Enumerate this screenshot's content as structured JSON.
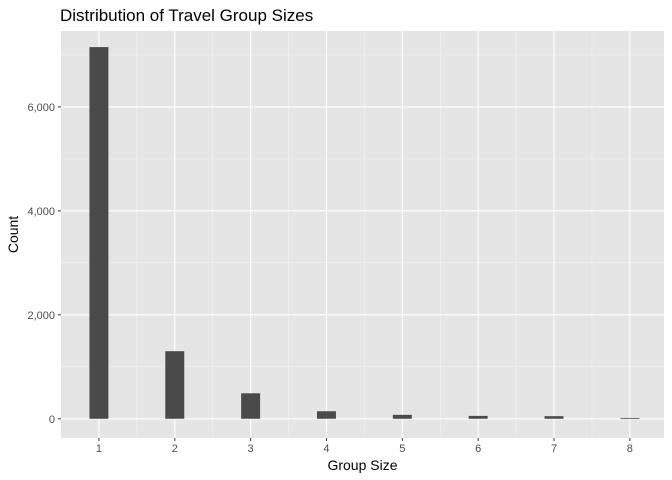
{
  "chart_data": {
    "type": "bar",
    "title": "Distribution of Travel Group Sizes",
    "xlabel": "Group Size",
    "ylabel": "Count",
    "categories": [
      1,
      2,
      3,
      4,
      5,
      6,
      7,
      8
    ],
    "category_labels": [
      "1",
      "2",
      "3",
      "4",
      "5",
      "6",
      "7",
      "8"
    ],
    "values": [
      7150,
      1300,
      490,
      145,
      75,
      55,
      50,
      15
    ],
    "xlim": [
      0.5,
      8.45
    ],
    "ylim": [
      -370,
      7460
    ],
    "yticks": [
      0,
      2000,
      4000,
      6000
    ],
    "ytick_labels": [
      "0",
      "2,000",
      "4,000",
      "6,000"
    ],
    "bar_width_in_units": 0.25,
    "grid": true,
    "legend": "none",
    "colors": {
      "panel_background": "#e5e5e5",
      "grid_major": "#ffffff",
      "grid_minor": "#f2f2f2",
      "bar_fill": "#4a4a4a"
    }
  }
}
